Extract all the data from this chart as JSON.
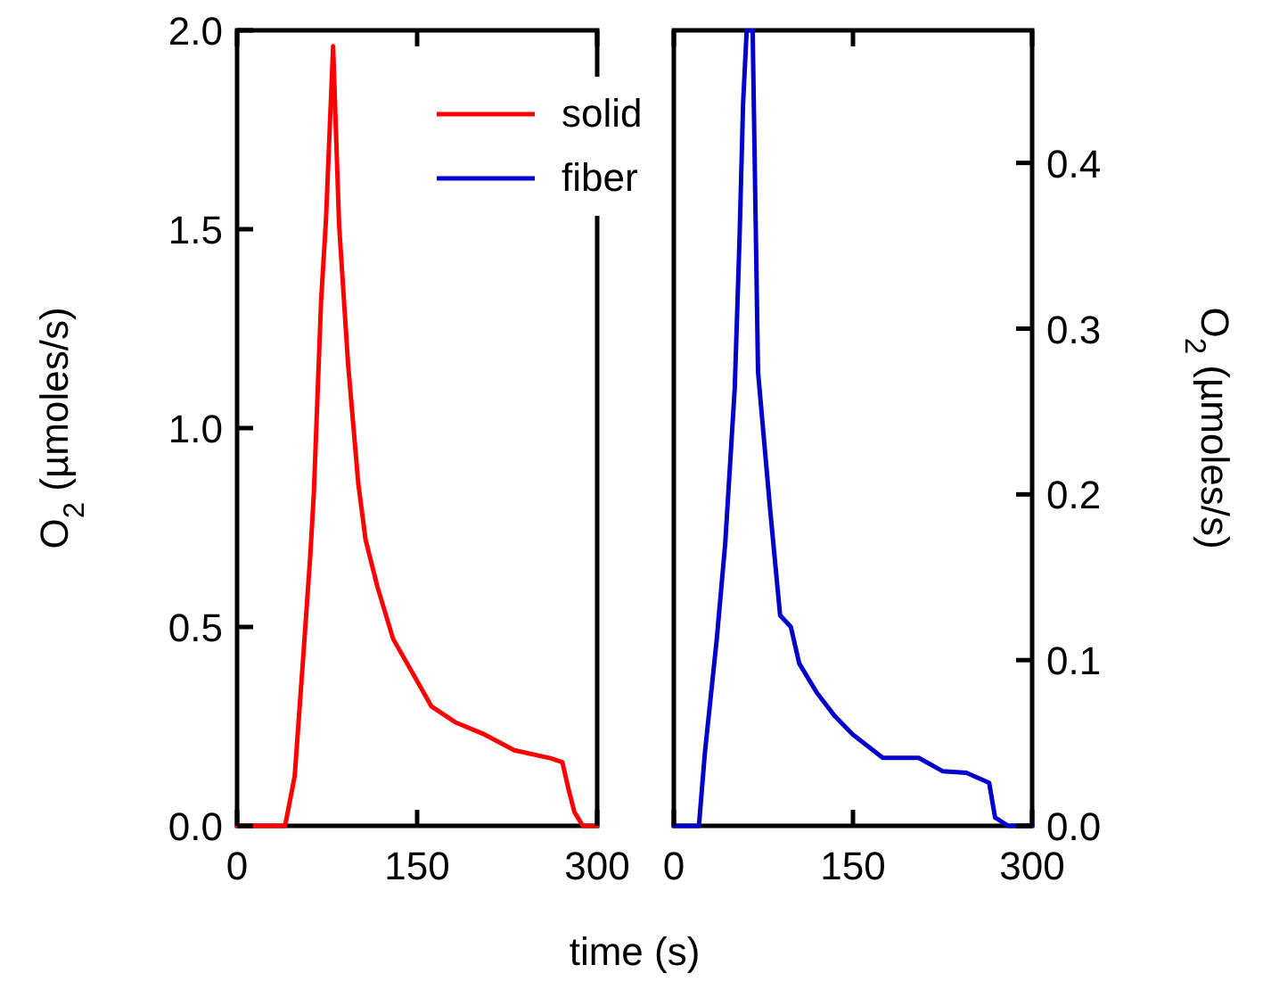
{
  "chart_data": [
    {
      "type": "line",
      "xlabel": "time (s)",
      "ylabel": "O$_{2}$ (µmoles/s)",
      "xlim": [
        0,
        300
      ],
      "xticks": [
        0,
        150,
        300
      ],
      "ylim": [
        0,
        2
      ],
      "yticks": [
        {
          "value": 0,
          "label": "0.0"
        },
        {
          "value": 0.5,
          "label": "0.5"
        },
        {
          "value": 1,
          "label": "1.0"
        },
        {
          "value": 1.5,
          "label": "1.5"
        },
        {
          "value": 2,
          "label": "2.0"
        }
      ],
      "legend": "top right",
      "grid": false,
      "series": [
        {
          "name": "solid",
          "color": "#ff0000",
          "x": [
            0,
            10,
            20,
            30,
            40,
            48,
            55,
            61,
            64,
            70,
            74,
            80,
            85,
            92.5,
            101,
            107,
            117,
            130,
            147,
            162,
            182,
            206,
            231,
            261,
            271,
            276,
            281,
            288,
            300
          ],
          "values": [
            0,
            0,
            0,
            0,
            0,
            0.125,
            0.42,
            0.68,
            0.84,
            1.32,
            1.52,
            1.96,
            1.51,
            1.16,
            0.86,
            0.72,
            0.6,
            0.47,
            0.38,
            0.3,
            0.26,
            0.23,
            0.19,
            0.17,
            0.16,
            0.094,
            0.035,
            0,
            0
          ]
        }
      ]
    },
    {
      "type": "line",
      "xlim": [
        0,
        300
      ],
      "xticks": [
        0,
        150,
        300
      ],
      "y2label": "O$_{2}$ (µmoles/s)",
      "y2lim": [
        0,
        0.48
      ],
      "y2ticks": [
        {
          "value": 0,
          "label": "0.0"
        },
        0.1,
        0.2,
        0.3,
        0.4
      ],
      "grid": false,
      "series": [
        {
          "name": "fiber",
          "color": "#0000cc",
          "axis": "y2",
          "x": [
            0,
            10,
            21,
            26,
            36,
            43,
            51,
            55,
            58,
            61,
            66,
            70.5,
            80.5,
            89,
            98,
            105,
            120,
            135,
            150,
            175,
            205,
            225,
            245,
            264,
            269,
            280,
            300
          ],
          "values": [
            0,
            0,
            0,
            0.044,
            0.113,
            0.17,
            0.264,
            0.354,
            0.436,
            0.48,
            0.48,
            0.274,
            0.192,
            0.127,
            0.12,
            0.098,
            0.08,
            0.066,
            0.055,
            0.041,
            0.041,
            0.033,
            0.032,
            0.026,
            0.005,
            0,
            0
          ]
        }
      ]
    }
  ]
}
